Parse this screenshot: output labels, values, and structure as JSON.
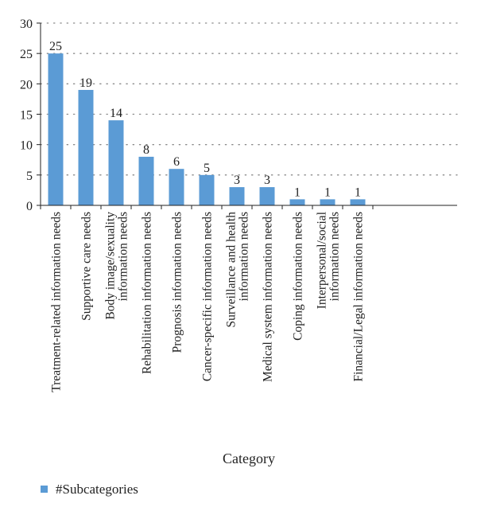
{
  "chart_data": {
    "type": "bar",
    "categories": [
      "Treatment-related information needs",
      "Supportive care needs",
      "Body image/sexuality information needs",
      "Rehabilitation information needs",
      "Prognosis information needs",
      "Cancer-specific information needs",
      "Surveillance and health information needs",
      "Medical system information needs",
      "Coping information needs",
      "Interpersonal/social information needs",
      "Financial/Legal information needs"
    ],
    "category_lines": [
      [
        "Treatment-related information needs"
      ],
      [
        "Supportive care needs"
      ],
      [
        "Body image/sexuality",
        "information needs"
      ],
      [
        "Rehabilitation information needs"
      ],
      [
        "Prognosis information needs"
      ],
      [
        "Cancer-specific information needs"
      ],
      [
        "Surveillance and health",
        "information needs"
      ],
      [
        "Medical system information needs"
      ],
      [
        "Coping information needs"
      ],
      [
        "Interpersonal/social",
        "information needs"
      ],
      [
        "Financial/Legal information needs"
      ]
    ],
    "series": [
      {
        "name": "#Subcategories",
        "values": [
          25,
          19,
          14,
          8,
          6,
          5,
          3,
          3,
          1,
          1,
          1
        ],
        "color": "#5b9bd5"
      }
    ],
    "data_labels": [
      "25",
      "19",
      "14",
      "8",
      "6",
      "5",
      "3",
      "3",
      "1",
      "1",
      "1"
    ],
    "ylim": [
      0,
      30
    ],
    "yticks": [
      0,
      5,
      10,
      15,
      20,
      25,
      30
    ],
    "ytick_labels": [
      "0",
      "5",
      "10",
      "15",
      "20",
      "25",
      "30"
    ],
    "xlabel": "Category",
    "ylabel": "",
    "grid": "horizontal dotted",
    "legend_position": "bottom-left",
    "colors": {
      "bar": "#5b9bd5",
      "axis": "#222222",
      "grid": "#8a8a8a"
    }
  }
}
